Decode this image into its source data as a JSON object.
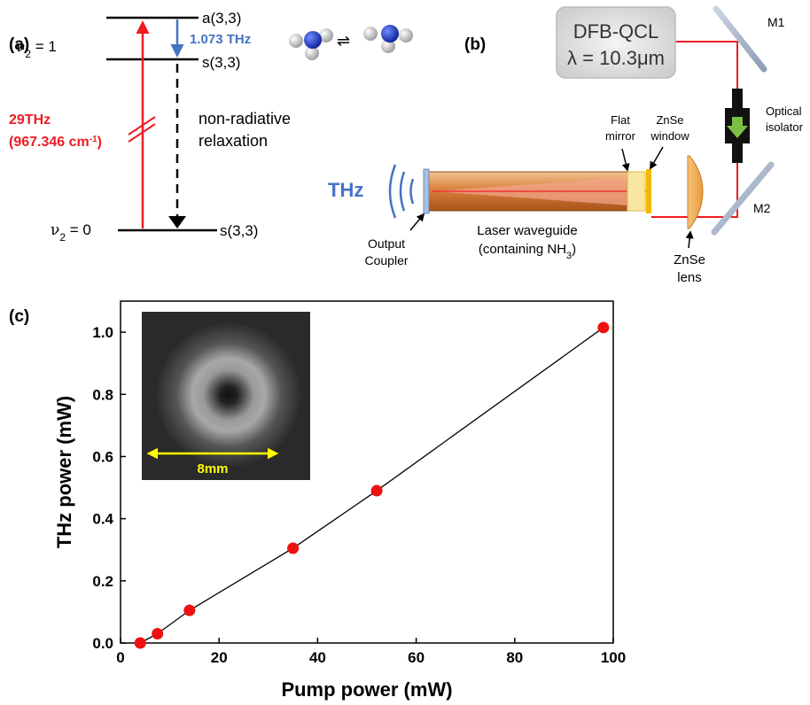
{
  "panel_a": {
    "label": "(a)",
    "level_v1_nu": "ν",
    "level_v1_sub": "2",
    "level_v1_val": " = 1",
    "level_v0_nu": "ν",
    "level_v0_sub": "2",
    "level_v0_val": " = 0",
    "state_a33": "a(3,3)",
    "state_s33_upper": "s(3,3)",
    "state_s33_lower": "s(3,3)",
    "thz_freq": "1.073 THz",
    "pump_freq": "29THz",
    "pump_wavenumber_open": "(967.346 cm",
    "pump_wavenumber_sup": "-1",
    "pump_wavenumber_close": ")",
    "relax_line1": "non-radiative",
    "relax_line2": "relaxation",
    "equilibrium_symbol": "⇌",
    "colors": {
      "pump": "#ee1c24",
      "thz": "#4472c4",
      "molecule_n": "#1f3fbf",
      "molecule_h": "#d9d9d9"
    }
  },
  "panel_b": {
    "label": "(b)",
    "qcl_line1": "DFB-QCL",
    "qcl_line2": "λ = 10.3μm",
    "m1": "M1",
    "m2": "M2",
    "isolator_line1": "Optical",
    "isolator_line2": "isolator",
    "thz": "THz",
    "flat_mirror_line1": "Flat",
    "flat_mirror_line2": "mirror",
    "window_line1": "ZnSe",
    "window_line2": "window",
    "waveguide_line1": "Laser waveguide",
    "waveguide_line2_open": "(containing NH",
    "waveguide_line2_sub": "3",
    "waveguide_line2_close": ")",
    "coupler_line1": "Output",
    "coupler_line2": "Coupler",
    "lens_line1": "ZnSe",
    "lens_line2": "lens",
    "colors": {
      "beam": "#ee1c24",
      "waveguide": "#d9803a",
      "thz": "#4472c4",
      "isolator_arrow": "#7ac143"
    }
  },
  "panel_c": {
    "label": "(c)",
    "inset_scale_label": "8mm",
    "inset_scale_color": "#ffff00"
  },
  "chart_data": {
    "type": "scatter",
    "title": "",
    "xlabel": "Pump power (mW)",
    "ylabel": "THz power (mW)",
    "xlim": [
      0,
      100
    ],
    "ylim": [
      0,
      1.1
    ],
    "xticks": [
      "0",
      "20",
      "40",
      "60",
      "80",
      "100"
    ],
    "yticks": [
      "0.0",
      "0.2",
      "0.4",
      "0.6",
      "0.8",
      "1.0"
    ],
    "grid": false,
    "x": [
      4,
      7.5,
      14,
      35,
      52,
      98
    ],
    "y": [
      0.0,
      0.03,
      0.105,
      0.305,
      0.49,
      1.015
    ],
    "fit_line": true,
    "marker_color": "#ee1111"
  }
}
